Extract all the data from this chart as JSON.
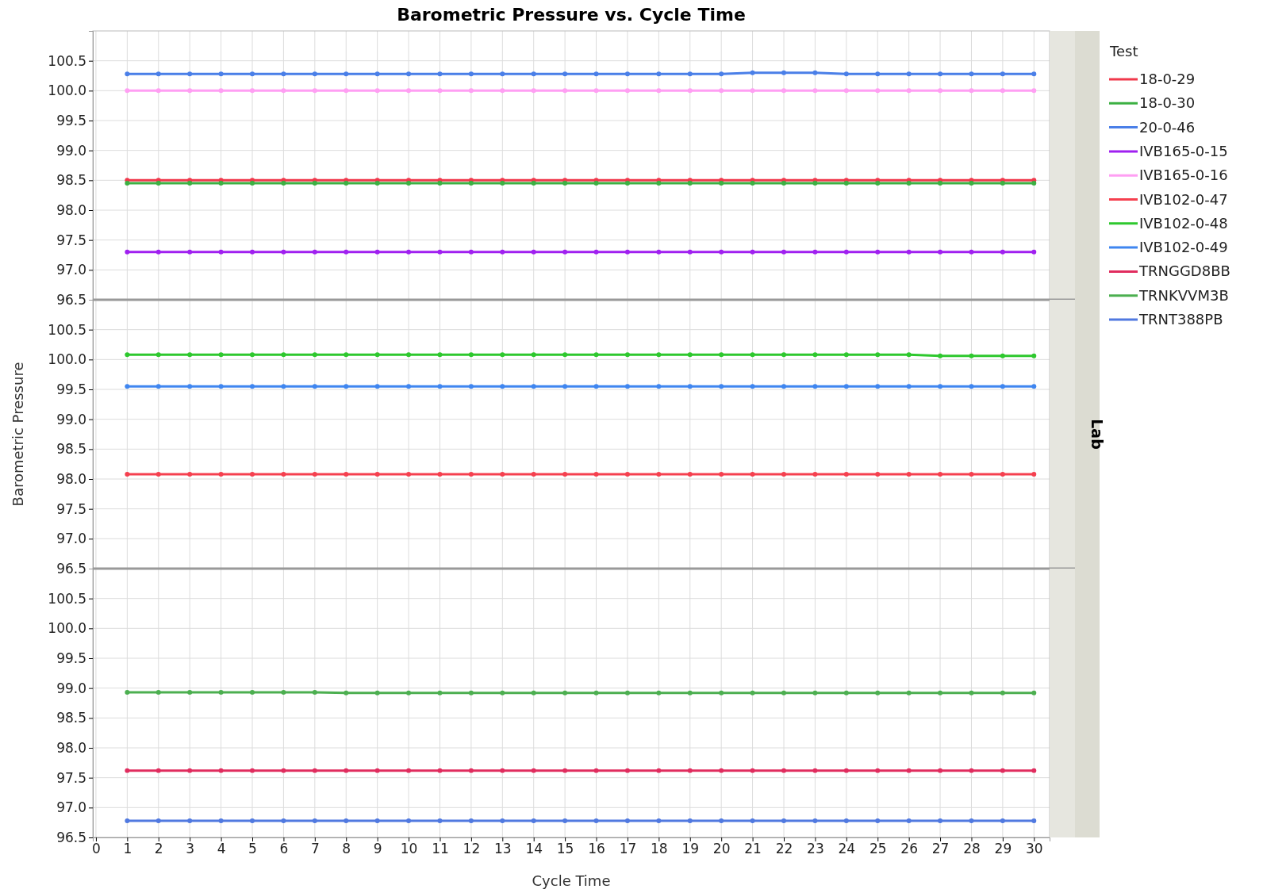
{
  "chart_data": [
    {
      "type": "line",
      "title": "Barometric Pressure vs. Cycle Time",
      "legend_title": "Test",
      "legend": "right",
      "grid": true,
      "marker": "circle",
      "tick_labels": "y",
      "x": [
        1,
        2,
        3,
        4,
        5,
        6,
        7,
        8,
        9,
        10,
        11,
        12,
        13,
        14,
        15,
        16,
        17,
        18,
        19,
        20,
        21,
        22,
        23,
        24,
        25,
        26,
        27,
        28,
        29,
        30
      ],
      "xlim": [
        -0.1,
        30.5
      ],
      "xticks": [
        0,
        1,
        2,
        3,
        4,
        5,
        6,
        7,
        8,
        9,
        10,
        11,
        12,
        13,
        14,
        15,
        16,
        17,
        18,
        19,
        20,
        21,
        22,
        23,
        24,
        25,
        26,
        27,
        28,
        29,
        30
      ],
      "ylim": [
        96.5,
        101.0
      ],
      "yticks": [
        96.5,
        {
          "value": 97,
          "label": "97.0"
        },
        97.5,
        {
          "value": 98,
          "label": "98.0"
        },
        98.5,
        {
          "value": 99,
          "label": "99.0"
        },
        99.5,
        {
          "value": 100,
          "label": "100.0"
        },
        100.5
      ],
      "series": [
        {
          "name": "18-0-29",
          "color": "#f0384b",
          "values": [
            98.5,
            98.5,
            98.5,
            98.5,
            98.5,
            98.5,
            98.5,
            98.5,
            98.5,
            98.5,
            98.5,
            98.5,
            98.5,
            98.5,
            98.5,
            98.5,
            98.5,
            98.5,
            98.5,
            98.5,
            98.5,
            98.5,
            98.5,
            98.5,
            98.5,
            98.5,
            98.5,
            98.5,
            98.5,
            98.5
          ]
        },
        {
          "name": "18-0-30",
          "color": "#3cb043",
          "values": [
            98.45,
            98.45,
            98.45,
            98.45,
            98.45,
            98.45,
            98.45,
            98.45,
            98.45,
            98.45,
            98.45,
            98.45,
            98.45,
            98.45,
            98.45,
            98.45,
            98.45,
            98.45,
            98.45,
            98.45,
            98.45,
            98.45,
            98.45,
            98.45,
            98.45,
            98.45,
            98.45,
            98.45,
            98.45,
            98.45
          ]
        },
        {
          "name": "20-0-46",
          "color": "#4a7fe8",
          "values": [
            100.28,
            100.28,
            100.28,
            100.28,
            100.28,
            100.28,
            100.28,
            100.28,
            100.28,
            100.28,
            100.28,
            100.28,
            100.28,
            100.28,
            100.28,
            100.28,
            100.28,
            100.28,
            100.28,
            100.28,
            100.3,
            100.3,
            100.3,
            100.28,
            100.28,
            100.28,
            100.28,
            100.28,
            100.28,
            100.28
          ]
        },
        {
          "name": "IVB165-0-15",
          "color": "#a020f0",
          "values": [
            97.3,
            97.3,
            97.3,
            97.3,
            97.3,
            97.3,
            97.3,
            97.3,
            97.3,
            97.3,
            97.3,
            97.3,
            97.3,
            97.3,
            97.3,
            97.3,
            97.3,
            97.3,
            97.3,
            97.3,
            97.3,
            97.3,
            97.3,
            97.3,
            97.3,
            97.3,
            97.3,
            97.3,
            97.3,
            97.3
          ]
        },
        {
          "name": "IVB165-0-16",
          "color": "#ff9ff3",
          "values": [
            100.0,
            100.0,
            100.0,
            100.0,
            100.0,
            100.0,
            100.0,
            100.0,
            100.0,
            100.0,
            100.0,
            100.0,
            100.0,
            100.0,
            100.0,
            100.0,
            100.0,
            100.0,
            100.0,
            100.0,
            100.0,
            100.0,
            100.0,
            100.0,
            100.0,
            100.0,
            100.0,
            100.0,
            100.0,
            100.0
          ]
        }
      ]
    },
    {
      "type": "line",
      "ylabel": "Barometric Pressure",
      "annotations": [
        "Lab"
      ],
      "legend": "right",
      "grid": true,
      "marker": "circle",
      "tick_labels": "y",
      "x": [
        1,
        2,
        3,
        4,
        5,
        6,
        7,
        8,
        9,
        10,
        11,
        12,
        13,
        14,
        15,
        16,
        17,
        18,
        19,
        20,
        21,
        22,
        23,
        24,
        25,
        26,
        27,
        28,
        29,
        30
      ],
      "xlim": [
        -0.1,
        30.5
      ],
      "xticks": [
        0,
        1,
        2,
        3,
        4,
        5,
        6,
        7,
        8,
        9,
        10,
        11,
        12,
        13,
        14,
        15,
        16,
        17,
        18,
        19,
        20,
        21,
        22,
        23,
        24,
        25,
        26,
        27,
        28,
        29,
        30
      ],
      "ylim": [
        96.5,
        101.0
      ],
      "yticks": [
        96.5,
        {
          "value": 97,
          "label": "97.0"
        },
        97.5,
        {
          "value": 98,
          "label": "98.0"
        },
        98.5,
        {
          "value": 99,
          "label": "99.0"
        },
        99.5,
        {
          "value": 100,
          "label": "100.0"
        },
        100.5
      ],
      "series": [
        {
          "name": "IVB102-0-47",
          "color": "#f5404f",
          "values": [
            98.08,
            98.08,
            98.08,
            98.08,
            98.08,
            98.08,
            98.08,
            98.08,
            98.08,
            98.08,
            98.08,
            98.08,
            98.08,
            98.08,
            98.08,
            98.08,
            98.08,
            98.08,
            98.08,
            98.08,
            98.08,
            98.08,
            98.08,
            98.08,
            98.08,
            98.08,
            98.08,
            98.08,
            98.08,
            98.08
          ]
        },
        {
          "name": "IVB102-0-48",
          "color": "#2ec82e",
          "values": [
            100.08,
            100.08,
            100.08,
            100.08,
            100.08,
            100.08,
            100.08,
            100.08,
            100.08,
            100.08,
            100.08,
            100.08,
            100.08,
            100.08,
            100.08,
            100.08,
            100.08,
            100.08,
            100.08,
            100.08,
            100.08,
            100.08,
            100.08,
            100.08,
            100.08,
            100.08,
            100.06,
            100.06,
            100.06,
            100.06
          ]
        },
        {
          "name": "IVB102-0-49",
          "color": "#3f86f0",
          "values": [
            99.55,
            99.55,
            99.55,
            99.55,
            99.55,
            99.55,
            99.55,
            99.55,
            99.55,
            99.55,
            99.55,
            99.55,
            99.55,
            99.55,
            99.55,
            99.55,
            99.55,
            99.55,
            99.55,
            99.55,
            99.55,
            99.55,
            99.55,
            99.55,
            99.55,
            99.55,
            99.55,
            99.55,
            99.55,
            99.55
          ]
        }
      ]
    },
    {
      "type": "line",
      "xlabel": "Cycle Time",
      "legend": "right",
      "grid": true,
      "marker": "circle",
      "x": [
        1,
        2,
        3,
        4,
        5,
        6,
        7,
        8,
        9,
        10,
        11,
        12,
        13,
        14,
        15,
        16,
        17,
        18,
        19,
        20,
        21,
        22,
        23,
        24,
        25,
        26,
        27,
        28,
        29,
        30
      ],
      "xlim": [
        -0.1,
        30.5
      ],
      "xticks": [
        0,
        1,
        2,
        3,
        4,
        5,
        6,
        7,
        8,
        9,
        10,
        11,
        12,
        13,
        14,
        15,
        16,
        17,
        18,
        19,
        20,
        21,
        22,
        23,
        24,
        25,
        26,
        27,
        28,
        29,
        30
      ],
      "ylim": [
        96.5,
        101.0
      ],
      "yticks": [
        96.5,
        {
          "value": 97,
          "label": "97.0"
        },
        97.5,
        {
          "value": 98,
          "label": "98.0"
        },
        98.5,
        {
          "value": 99,
          "label": "99.0"
        },
        99.5,
        {
          "value": 100,
          "label": "100.0"
        },
        100.5
      ],
      "series": [
        {
          "name": "TRNGGD8BB",
          "color": "#e02c5e",
          "values": [
            97.62,
            97.62,
            97.62,
            97.62,
            97.62,
            97.62,
            97.62,
            97.62,
            97.62,
            97.62,
            97.62,
            97.62,
            97.62,
            97.62,
            97.62,
            97.62,
            97.62,
            97.62,
            97.62,
            97.62,
            97.62,
            97.62,
            97.62,
            97.62,
            97.62,
            97.62,
            97.62,
            97.62,
            97.62,
            97.62
          ]
        },
        {
          "name": "TRNKVVM3B",
          "color": "#4caf50",
          "values": [
            98.93,
            98.93,
            98.93,
            98.93,
            98.93,
            98.93,
            98.93,
            98.92,
            98.92,
            98.92,
            98.92,
            98.92,
            98.92,
            98.92,
            98.92,
            98.92,
            98.92,
            98.92,
            98.92,
            98.92,
            98.92,
            98.92,
            98.92,
            98.92,
            98.92,
            98.92,
            98.92,
            98.92,
            98.92,
            98.92
          ]
        },
        {
          "name": "TRNT388PB",
          "color": "#5079e0",
          "values": [
            96.78,
            96.78,
            96.78,
            96.78,
            96.78,
            96.78,
            96.78,
            96.78,
            96.78,
            96.78,
            96.78,
            96.78,
            96.78,
            96.78,
            96.78,
            96.78,
            96.78,
            96.78,
            96.78,
            96.78,
            96.78,
            96.78,
            96.78,
            96.78,
            96.78,
            96.78,
            96.78,
            96.78,
            96.78,
            96.78
          ]
        }
      ]
    }
  ]
}
